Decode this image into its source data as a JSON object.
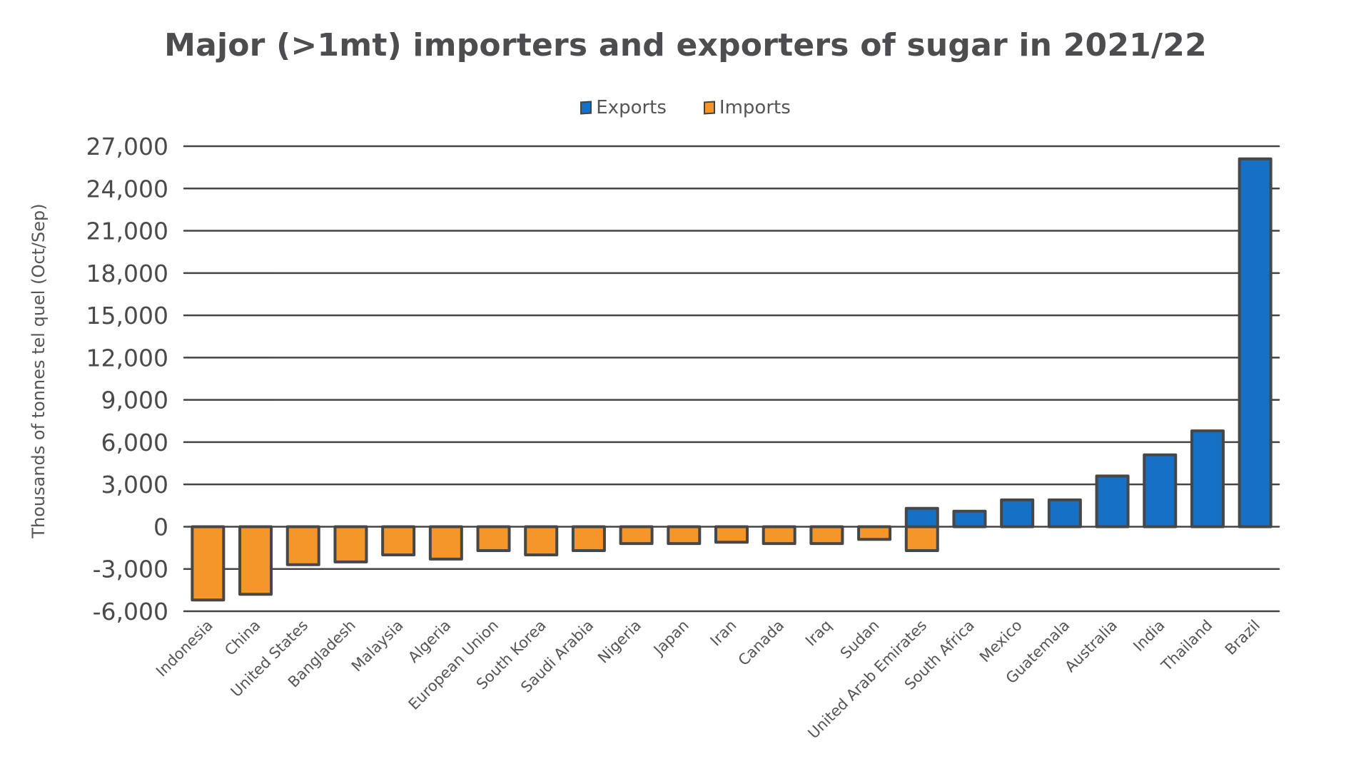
{
  "chart_data": {
    "type": "bar",
    "title": "Major (>1mt) importers and exporters of sugar in 2021/22",
    "ylabel": "Thousands of tonnes tel quel (Oct/Sep)",
    "ylim": [
      -6000,
      27000
    ],
    "yticks": [
      "27,000",
      "24,000",
      "21,000",
      "18,000",
      "15,000",
      "12,000",
      "9,000",
      "6,000",
      "3,000",
      "0",
      "-3,000",
      "-6,000"
    ],
    "ytick_values": [
      27000,
      24000,
      21000,
      18000,
      15000,
      12000,
      9000,
      6000,
      3000,
      0,
      -3000,
      -6000
    ],
    "grid": true,
    "legend_position": "top",
    "categories": [
      "Indonesia",
      "China",
      "United States",
      "Bangladesh",
      "Malaysia",
      "Algeria",
      "European Union",
      "South Korea",
      "Saudi Arabia",
      "Nigeria",
      "Japan",
      "Iran",
      "Canada",
      "Iraq",
      "Sudan",
      "United Arab Emirates",
      "South Africa",
      "Mexico",
      "Guatemala",
      "Australia",
      "India",
      "Thailand",
      "Brazil"
    ],
    "series": [
      {
        "name": "Exports",
        "color": "#1670c4",
        "values": [
          0,
          0,
          0,
          0,
          0,
          0,
          0,
          0,
          0,
          0,
          0,
          0,
          0,
          0,
          0,
          1300,
          1100,
          1900,
          1900,
          3600,
          5100,
          6800,
          26100
        ]
      },
      {
        "name": "Imports",
        "color": "#f5962a",
        "values": [
          -5200,
          -4800,
          -2700,
          -2500,
          -2000,
          -2300,
          -1700,
          -2000,
          -1700,
          -1200,
          -1200,
          -1100,
          -1200,
          -1200,
          -900,
          -1700,
          0,
          0,
          0,
          0,
          0,
          0,
          0
        ]
      }
    ]
  }
}
